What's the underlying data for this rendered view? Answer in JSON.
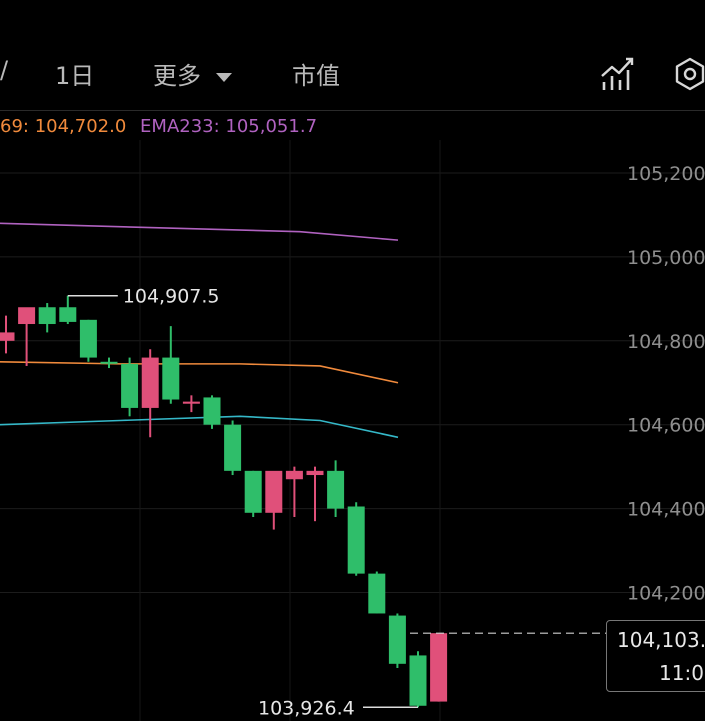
{
  "tabs": {
    "left_fragment": "/",
    "day": "1日",
    "more": "更多",
    "market_cap": "市值"
  },
  "legend": {
    "ema169": "69: 104,702.0",
    "ema233": "EMA233: 105,051.7"
  },
  "current": {
    "price": "104,103.",
    "time": "11:0"
  },
  "colors": {
    "up": "#2fbe6a",
    "down": "#e0507a",
    "ema169": "#f08a3c",
    "ema233": "#b062c0",
    "ema_cyan": "#35b8c8"
  },
  "icons": [
    "chart-indicator-icon",
    "settings-hex-icon",
    "dropdown-caret-icon"
  ],
  "chart_data": {
    "type": "candlestick",
    "y_ticks": [
      "105,200",
      "105,000",
      "104,800",
      "104,600",
      "104,400",
      "104,200"
    ],
    "ylim": [
      103900,
      105260
    ],
    "grid": true,
    "annotations": {
      "high": "104,907.5",
      "low": "103,926.4",
      "high_value": 104907.5,
      "low_value": 103926.4
    },
    "candles": [
      {
        "o": 104800,
        "h": 104860,
        "l": 104770,
        "c": 104820,
        "up": false
      },
      {
        "o": 104840,
        "h": 104875,
        "l": 104740,
        "c": 104880,
        "up": false
      },
      {
        "o": 104840,
        "h": 104890,
        "l": 104820,
        "c": 104880,
        "up": true
      },
      {
        "o": 104845,
        "h": 104907.5,
        "l": 104840,
        "c": 104880,
        "up": true
      },
      {
        "o": 104850,
        "h": 104850,
        "l": 104750,
        "c": 104760,
        "up": true
      },
      {
        "o": 104750,
        "h": 104760,
        "l": 104735,
        "c": 104750,
        "up": true
      },
      {
        "o": 104745,
        "h": 104760,
        "l": 104620,
        "c": 104640,
        "up": true
      },
      {
        "o": 104640,
        "h": 104780,
        "l": 104570,
        "c": 104760,
        "up": false
      },
      {
        "o": 104760,
        "h": 104835,
        "l": 104650,
        "c": 104660,
        "up": true
      },
      {
        "o": 104655,
        "h": 104670,
        "l": 104630,
        "c": 104650,
        "up": false
      },
      {
        "o": 104665,
        "h": 104670,
        "l": 104590,
        "c": 104600,
        "up": true
      },
      {
        "o": 104600,
        "h": 104610,
        "l": 104480,
        "c": 104490,
        "up": true
      },
      {
        "o": 104490,
        "h": 104490,
        "l": 104380,
        "c": 104390,
        "up": true
      },
      {
        "o": 104390,
        "h": 104480,
        "l": 104350,
        "c": 104490,
        "up": false
      },
      {
        "o": 104490,
        "h": 104500,
        "l": 104380,
        "c": 104470,
        "up": false
      },
      {
        "o": 104490,
        "h": 104500,
        "l": 104370,
        "c": 104480,
        "up": false
      },
      {
        "o": 104490,
        "h": 104515,
        "l": 104380,
        "c": 104400,
        "up": true
      },
      {
        "o": 104405,
        "h": 104415,
        "l": 104240,
        "c": 104245,
        "up": true
      },
      {
        "o": 104245,
        "h": 104250,
        "l": 104150,
        "c": 104150,
        "up": true
      },
      {
        "o": 104145,
        "h": 104150,
        "l": 104020,
        "c": 104030,
        "up": true
      },
      {
        "o": 104050,
        "h": 104060,
        "l": 103926.4,
        "c": 103930,
        "up": true
      },
      {
        "o": 104103,
        "h": 104103,
        "l": 103940,
        "c": 103940,
        "up": false
      }
    ],
    "ema233": [
      105080,
      105070,
      105060,
      105040
    ],
    "ema169": [
      104750,
      104745,
      104745,
      104740,
      104700
    ],
    "ema_cyan": [
      104600,
      104610,
      104620,
      104610,
      104570
    ],
    "current_price": 104103
  }
}
